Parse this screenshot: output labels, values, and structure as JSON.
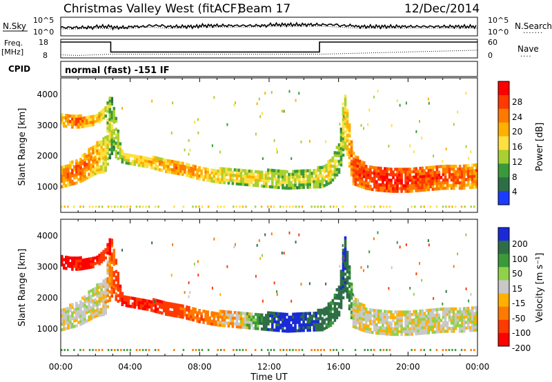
{
  "header": {
    "station": "Christmas Valley West (fitACF)",
    "beam": "Beam 17",
    "date": "12/Dec/2014"
  },
  "chart_data": [
    {
      "type": "line",
      "panel": "noise",
      "left_label": "N.Sky",
      "right_label": "N.Search",
      "left_ticks": [
        "10^5",
        "10^0"
      ],
      "right_ticks": [
        "10^5",
        "10^0"
      ],
      "x_ticks": [
        "00:00",
        "04:00",
        "08:00",
        "12:00",
        "16:00",
        "20:00",
        "00:00"
      ],
      "series": [
        {
          "x": [
            0,
            1,
            2,
            3,
            4,
            5,
            6,
            7,
            8,
            9,
            10,
            11,
            12,
            13,
            14,
            15,
            16,
            17,
            18,
            19,
            20,
            21,
            22,
            23,
            24
          ],
          "values": [
            0.45,
            0.45,
            0.5,
            0.45,
            0.5,
            0.55,
            0.5,
            0.5,
            0.55,
            0.55,
            0.55,
            0.55,
            0.6,
            0.6,
            0.6,
            0.6,
            0.55,
            0.5,
            0.5,
            0.5,
            0.5,
            0.5,
            0.5,
            0.5,
            0.5
          ]
        }
      ]
    },
    {
      "type": "line",
      "panel": "frequency",
      "left_label_lines": [
        "Freq.",
        "[MHz]"
      ],
      "right_label": "Nave",
      "left_ticks": [
        "18",
        "8"
      ],
      "right_ticks": [
        "60",
        "0"
      ],
      "left_ylim": [
        8,
        18
      ],
      "right_ylim": [
        0,
        60
      ],
      "freq_steps": [
        [
          0,
          16.5
        ],
        [
          2.88,
          16.5
        ],
        [
          2.88,
          11.2
        ],
        [
          14.9,
          11.2
        ],
        [
          14.9,
          16.5
        ],
        [
          24,
          16.5
        ]
      ],
      "nave_steps": [
        [
          0,
          10
        ],
        [
          0.5,
          9
        ],
        [
          1.0,
          8
        ],
        [
          2.88,
          12
        ],
        [
          14.9,
          12
        ],
        [
          24,
          25
        ]
      ]
    },
    {
      "type": "label",
      "panel": "cpid",
      "left_label": "CPID",
      "text": "normal (fast) -151 IF"
    },
    {
      "type": "heatmap",
      "panel": "power",
      "ylabel": "Slant Range [km]",
      "y_ticks": [
        "4000",
        "3000",
        "2000",
        "1000"
      ],
      "ylim": [
        200,
        4600
      ],
      "xlim": [
        0,
        24
      ],
      "colorbar": {
        "label": "Power [dB]",
        "ticks": [
          "28",
          "24",
          "20",
          "16",
          "12",
          "8",
          "4"
        ],
        "colors": [
          "#ff0000",
          "#ff3a00",
          "#ff7a00",
          "#ffb000",
          "#ffe040",
          "#a8d030",
          "#3a9a3a",
          "#2e6e46",
          "#1a3cff"
        ]
      },
      "bands": [
        {
          "x": [
            0,
            1,
            2,
            2.5,
            2.85,
            3.5,
            5,
            6,
            7,
            8,
            9,
            10,
            11,
            12,
            13,
            14,
            15,
            15.5,
            16,
            16.3,
            16.8,
            17.5,
            18,
            19,
            20,
            21,
            22,
            23,
            24
          ],
          "lower": [
            1000,
            1150,
            1450,
            1500,
            2100,
            1800,
            1650,
            1500,
            1400,
            1250,
            1150,
            1100,
            1050,
            1000,
            950,
            980,
            1000,
            1150,
            1500,
            2300,
            1100,
            950,
            900,
            850,
            850,
            900,
            950,
            950,
            1000
          ],
          "upper": [
            1650,
            1950,
            2450,
            2600,
            4100,
            2150,
            2000,
            1900,
            1800,
            1700,
            1600,
            1580,
            1550,
            1550,
            1550,
            1550,
            1650,
            1900,
            2500,
            4100,
            2100,
            1750,
            1700,
            1650,
            1600,
            1650,
            1700,
            1750,
            1750
          ],
          "values": [
            20,
            22,
            18,
            14,
            8,
            12,
            16,
            18,
            20,
            18,
            14,
            12,
            14,
            12,
            10,
            10,
            12,
            14,
            8,
            12,
            24,
            26,
            26,
            28,
            26,
            24,
            24,
            22,
            20
          ]
        },
        {
          "x": [
            0,
            0.5,
            1,
            1.5,
            2,
            2.5,
            2.85
          ],
          "lower": [
            3000,
            2950,
            2950,
            3000,
            3050,
            3300,
            3500
          ],
          "upper": [
            3450,
            3400,
            3350,
            3300,
            3400,
            3600,
            4100
          ],
          "values": [
            18,
            20,
            22,
            18,
            16,
            12,
            8
          ]
        }
      ]
    },
    {
      "type": "heatmap",
      "panel": "velocity",
      "ylabel": "Slant Range [km]",
      "xlabel": "Time UT",
      "y_ticks": [
        "4000",
        "3000",
        "2000",
        "1000"
      ],
      "ylim": [
        200,
        4600
      ],
      "xlim": [
        0,
        24
      ],
      "colorbar": {
        "label": "Velocity [m s⁻¹]",
        "ticks": [
          "200",
          "100",
          "50",
          "15",
          "-15",
          "-50",
          "-100",
          "-200"
        ],
        "colors": [
          "#1a2ad8",
          "#2e6e46",
          "#3a9a3a",
          "#8fd24a",
          "#c8c8c8",
          "#ffb000",
          "#ff7a00",
          "#ff3a00",
          "#ff0000"
        ]
      },
      "bands": [
        {
          "x": [
            0,
            1,
            2,
            2.5,
            2.85,
            3.5,
            5,
            6,
            7,
            8,
            9,
            10,
            11,
            12,
            13,
            14,
            15,
            15.5,
            16,
            16.3,
            16.8,
            17.5,
            18,
            19,
            20,
            21,
            22,
            23,
            24
          ],
          "lower": [
            1000,
            1150,
            1450,
            1500,
            2100,
            1800,
            1650,
            1500,
            1400,
            1250,
            1150,
            1100,
            1050,
            1000,
            950,
            980,
            1000,
            1150,
            1500,
            2300,
            1100,
            950,
            900,
            850,
            850,
            900,
            950,
            950,
            1000
          ],
          "upper": [
            1650,
            1950,
            2450,
            2600,
            4100,
            2150,
            2000,
            1900,
            1800,
            1700,
            1600,
            1580,
            1550,
            1550,
            1550,
            1550,
            1650,
            1900,
            2500,
            4100,
            2100,
            1750,
            1700,
            1650,
            1600,
            1650,
            1700,
            1750,
            1750
          ],
          "values": [
            0,
            0,
            0,
            0,
            -60,
            -150,
            -150,
            -120,
            -90,
            -60,
            -40,
            -20,
            20,
            150,
            180,
            160,
            120,
            80,
            120,
            150,
            0,
            0,
            0,
            0,
            0,
            0,
            0,
            0,
            0
          ]
        },
        {
          "x": [
            0,
            0.5,
            1,
            1.5,
            2,
            2.5,
            2.85
          ],
          "lower": [
            3000,
            2950,
            2950,
            3000,
            3050,
            3300,
            3500
          ],
          "upper": [
            3450,
            3400,
            3350,
            3300,
            3400,
            3600,
            4100
          ],
          "values": [
            -200,
            -180,
            -160,
            -180,
            -150,
            -120,
            -200
          ]
        }
      ]
    }
  ]
}
